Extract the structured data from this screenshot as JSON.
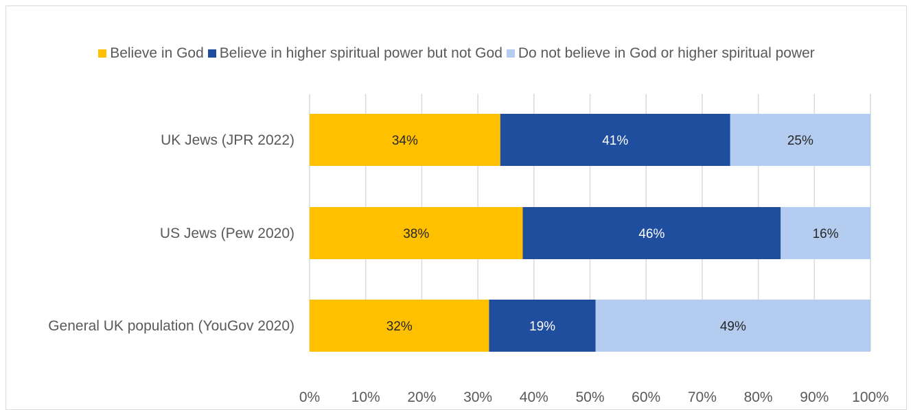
{
  "chart_data": {
    "type": "bar",
    "orientation": "horizontal",
    "stacked": true,
    "categories": [
      "UK Jews (JPR 2022)",
      "US Jews (Pew 2020)",
      "General UK population (YouGov 2020)"
    ],
    "series": [
      {
        "name": "Believe in God",
        "color": "#FFC000",
        "label_color": "#262626",
        "values": [
          34,
          38,
          32
        ],
        "labels": [
          "34%",
          "38%",
          "32%"
        ]
      },
      {
        "name": "Believe in higher spiritual power but not God",
        "color": "#1F4E9F",
        "label_color": "#ffffff",
        "values": [
          41,
          46,
          19
        ],
        "labels": [
          "41%",
          "46%",
          "19%"
        ]
      },
      {
        "name": "Do not believe in God or higher spiritual power",
        "color": "#B4CCF0",
        "label_color": "#262626",
        "values": [
          25,
          16,
          49
        ],
        "labels": [
          "25%",
          "16%",
          "49%"
        ]
      }
    ],
    "xlim": [
      0,
      100
    ],
    "x_ticks": [
      "0%",
      "10%",
      "20%",
      "30%",
      "40%",
      "50%",
      "60%",
      "70%",
      "80%",
      "90%",
      "100%"
    ],
    "grid": true,
    "legend_position": "top"
  }
}
